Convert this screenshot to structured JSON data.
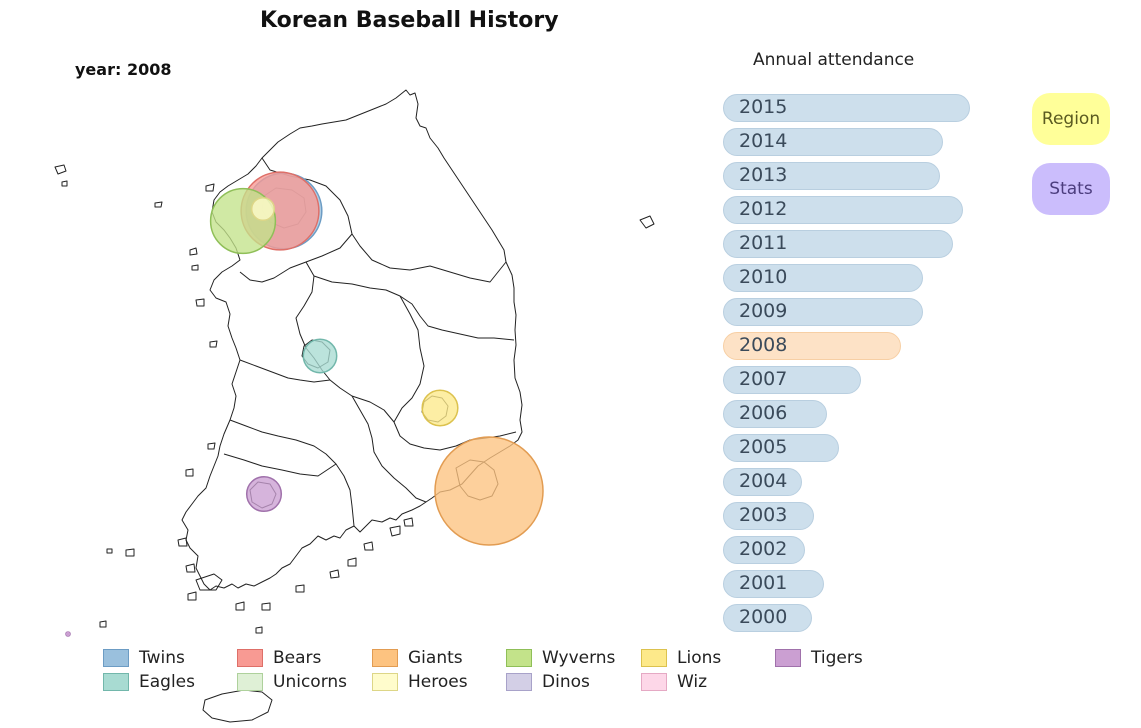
{
  "title": "Korean Baseball History",
  "year_label": "year: 2008",
  "attendance": {
    "title": "Annual attendance",
    "selected": "2008",
    "years": [
      {
        "label": "2015",
        "value": 1.0
      },
      {
        "label": "2014",
        "value": 0.89
      },
      {
        "label": "2013",
        "value": 0.88
      },
      {
        "label": "2012",
        "value": 0.97
      },
      {
        "label": "2011",
        "value": 0.93
      },
      {
        "label": "2010",
        "value": 0.81
      },
      {
        "label": "2009",
        "value": 0.81
      },
      {
        "label": "2008",
        "value": 0.72
      },
      {
        "label": "2007",
        "value": 0.56
      },
      {
        "label": "2006",
        "value": 0.42
      },
      {
        "label": "2005",
        "value": 0.47
      },
      {
        "label": "2004",
        "value": 0.32
      },
      {
        "label": "2003",
        "value": 0.37
      },
      {
        "label": "2002",
        "value": 0.33
      },
      {
        "label": "2001",
        "value": 0.41
      },
      {
        "label": "2000",
        "value": 0.36
      }
    ]
  },
  "buttons": {
    "region": "Region",
    "stats": "Stats"
  },
  "legend": [
    {
      "name": "Twins",
      "fill": "#9ac0dd",
      "stroke": "#6c9cc4"
    },
    {
      "name": "Bears",
      "fill": "#f89a93",
      "stroke": "#de6f68"
    },
    {
      "name": "Giants",
      "fill": "#fdc380",
      "stroke": "#e29c52"
    },
    {
      "name": "Wyverns",
      "fill": "#c3e38a",
      "stroke": "#8fbf58"
    },
    {
      "name": "Lions",
      "fill": "#fde98a",
      "stroke": "#dcc24e"
    },
    {
      "name": "Tigers",
      "fill": "#cb9fd2",
      "stroke": "#a071ab"
    },
    {
      "name": "Eagles",
      "fill": "#a8dbd2",
      "stroke": "#72b7ab"
    },
    {
      "name": "Unicorns",
      "fill": "#dff0d6",
      "stroke": "#aed19c"
    },
    {
      "name": "Heroes",
      "fill": "#fffccc",
      "stroke": "#ddd687"
    },
    {
      "name": "Dinos",
      "fill": "#d3cfe6",
      "stroke": "#a8a2c9"
    },
    {
      "name": "Wiz",
      "fill": "#fdd7e8",
      "stroke": "#e5a9c4"
    }
  ],
  "teams": [
    {
      "name": "Twins",
      "relative_attendance": 0.7
    },
    {
      "name": "Bears",
      "relative_attendance": 0.72
    },
    {
      "name": "Wyverns",
      "relative_attendance": 0.6
    },
    {
      "name": "Heroes",
      "relative_attendance": 0.21
    },
    {
      "name": "Eagles",
      "relative_attendance": 0.31
    },
    {
      "name": "Lions",
      "relative_attendance": 0.33
    },
    {
      "name": "Giants",
      "relative_attendance": 1.0
    },
    {
      "name": "Tigers",
      "relative_attendance": 0.32
    }
  ]
}
